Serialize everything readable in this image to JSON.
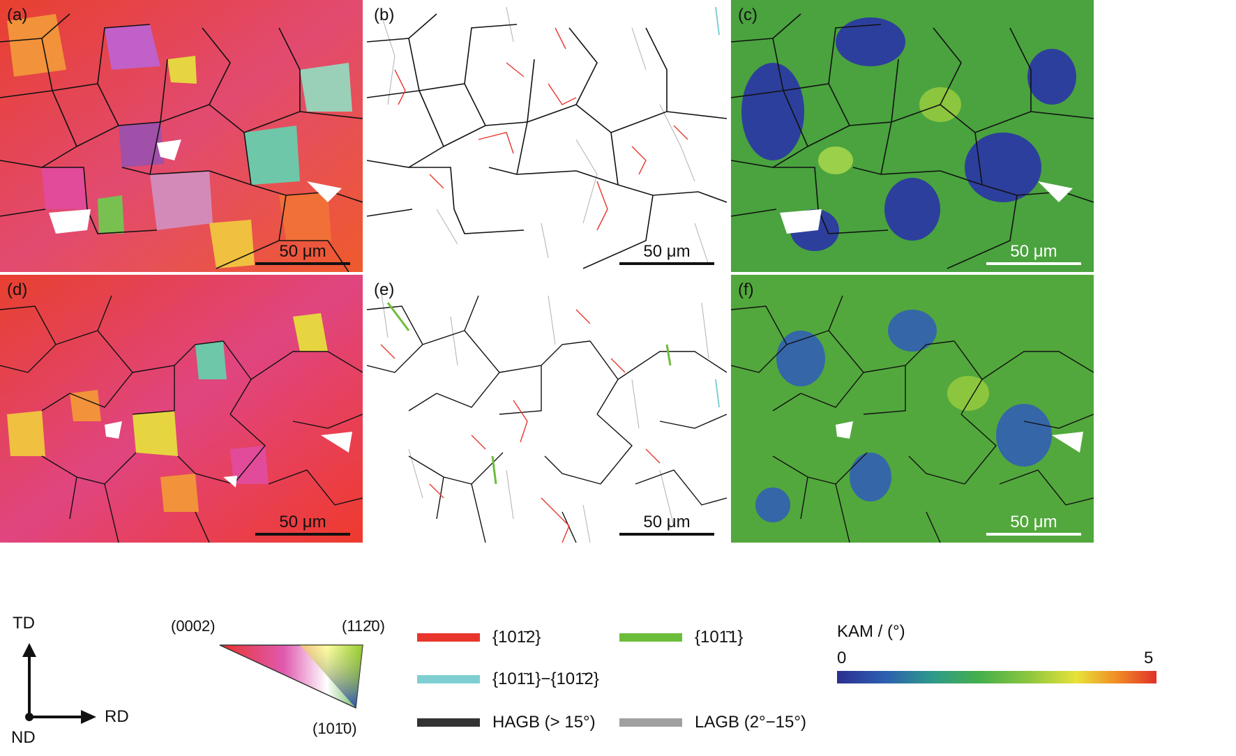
{
  "panels": {
    "a": {
      "label": "(a)",
      "scale": "50 μm"
    },
    "b": {
      "label": "(b)",
      "scale": "50 μm"
    },
    "c": {
      "label": "(c)",
      "scale": "50 μm"
    },
    "d": {
      "label": "(d)",
      "scale": "50 μm"
    },
    "e": {
      "label": "(e)",
      "scale": "50 μm"
    },
    "f": {
      "label": "(f)",
      "scale": "50 μm"
    }
  },
  "axes": {
    "td": "TD",
    "rd": "RD",
    "nd": "ND"
  },
  "ipf": {
    "top_left": "(0002)",
    "top_right": "(112̄0)",
    "bottom": "(101̄0)"
  },
  "boundary_legend": {
    "twin_1012": {
      "label": "{101̄2}",
      "color": "#e8362c"
    },
    "twin_1011": {
      "label": "{101̄1}",
      "color": "#6cbd3a"
    },
    "double_twin": {
      "label": "{101̄1}−{101̄2}",
      "color": "#7fcfd2"
    },
    "hagb": {
      "label": "HAGB (> 15°)",
      "color": "#333333"
    },
    "lagb": {
      "label": "LAGB (2°−15°)",
      "color": "#a0a0a0"
    }
  },
  "kam": {
    "title": "KAM / (°)",
    "min": "0",
    "max": "5"
  },
  "colors": {
    "ipf_red": "#e8322b",
    "ipf_pink": "#e0407a",
    "ipf_orange": "#f07a30",
    "kam_low": "#2b3a9a",
    "kam_mid": "#3f9a3a",
    "kam_high": "#e0302a"
  }
}
